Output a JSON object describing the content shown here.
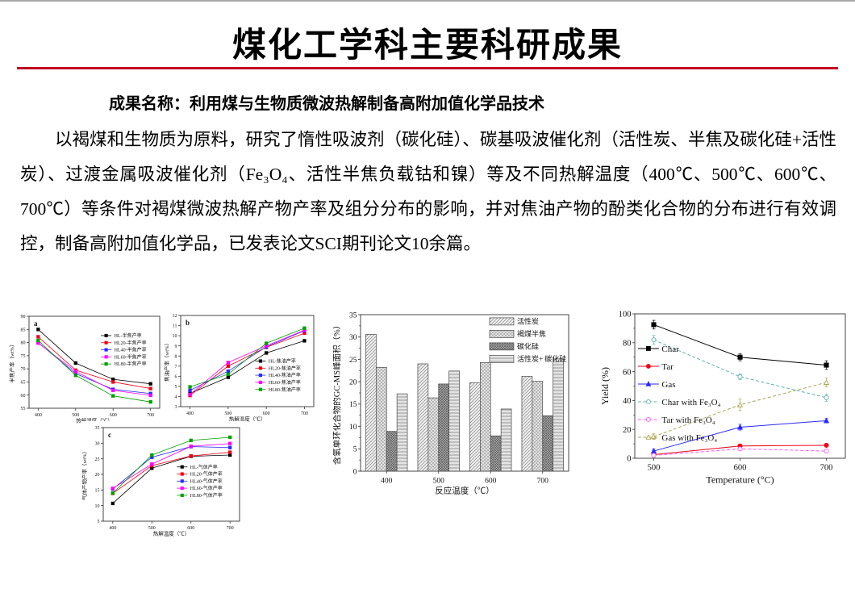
{
  "slide": {
    "title": "煤化工学科主要科研成果",
    "subtitle": "成果名称：利用煤与生物质微波热解制备高附加值化学品技术",
    "body": "以褐煤和生物质为原料，研究了惰性吸波剂（碳化硅）、碳基吸波催化剂（活性炭、半焦及碳化硅+活性炭）、过渡金属吸波催化剂（Fe₃O₄、活性半焦负载钴和镍）等及不同热解温度（400℃、500℃、600℃、700℃）等条件对褐煤微波热解产物产率及组分分布的影响，并对焦油产物的酚类化合物的分布进行有效调控，制备高附加值化学品，已发表论文SCI期刊论文10余篇。",
    "accent_color": "#c00023"
  },
  "chart_data": [
    {
      "id": "fig-a",
      "type": "line",
      "panel_label": "a",
      "x": [
        400,
        500,
        600,
        700
      ],
      "xlabel": "热解温度（℃）",
      "ylabel": "半焦产率（wt%）",
      "ylim": [
        55,
        90
      ],
      "ytick_step": 5,
      "grid": false,
      "legend_position": "inside-right",
      "legend_pos": [
        0.55,
        0.21
      ],
      "series": [
        {
          "name": "HL-半焦产率",
          "color": "#000000",
          "values": [
            85.0,
            72.2,
            66.0,
            64.3
          ]
        },
        {
          "name": "HL20-半焦产率",
          "color": "#f00014",
          "values": [
            82.2,
            69.5,
            65.0,
            62.5
          ]
        },
        {
          "name": "HL40-半焦产率",
          "color": "#2929ff",
          "values": [
            80.0,
            68.2,
            62.2,
            60.6
          ]
        },
        {
          "name": "HL60-半焦产率",
          "color": "#ff00ff",
          "values": [
            79.8,
            69.0,
            61.8,
            59.9
          ]
        },
        {
          "name": "HL80-半焦产率",
          "color": "#00a000",
          "values": [
            80.8,
            67.5,
            59.7,
            57.4
          ]
        }
      ]
    },
    {
      "id": "fig-b",
      "type": "line",
      "panel_label": "b",
      "x": [
        400,
        500,
        600,
        700
      ],
      "xlabel": "热解温度（℃）",
      "ylabel": "焦油产率（wt%）",
      "ylim": [
        3,
        12
      ],
      "ytick_step": 1,
      "grid": false,
      "legend_position": "inside-right-middle",
      "legend_pos": [
        0.56,
        0.5
      ],
      "series": [
        {
          "name": "HL-焦油产率",
          "color": "#000000",
          "values": [
            4.3,
            5.9,
            8.3,
            9.5
          ]
        },
        {
          "name": "HL20-焦油产率",
          "color": "#f00014",
          "values": [
            4.1,
            7.0,
            8.85,
            10.25
          ]
        },
        {
          "name": "HL40-焦油产率",
          "color": "#2929ff",
          "values": [
            4.6,
            6.5,
            8.9,
            10.5
          ]
        },
        {
          "name": "HL60-焦油产率",
          "color": "#ff00ff",
          "values": [
            4.2,
            7.35,
            9.0,
            10.55
          ]
        },
        {
          "name": "HL80-焦油产率",
          "color": "#00a000",
          "values": [
            4.95,
            6.2,
            9.25,
            10.75
          ]
        }
      ]
    },
    {
      "id": "fig-c",
      "type": "line",
      "panel_label": "c",
      "x": [
        400,
        500,
        600,
        700
      ],
      "xlabel": "热解温度（℃）",
      "ylabel": "气体产物产率（wt%）",
      "ylim": [
        5,
        35
      ],
      "ytick_step": 5,
      "grid": false,
      "legend_position": "inside-right-middle",
      "legend_pos": [
        0.54,
        0.42
      ],
      "series": [
        {
          "name": "HL-气体产率",
          "color": "#000000",
          "values": [
            10.7,
            22.0,
            25.8,
            26.2
          ]
        },
        {
          "name": "HL20-气体产率",
          "color": "#f00014",
          "values": [
            13.9,
            22.8,
            25.9,
            27.1
          ]
        },
        {
          "name": "HL40-气体产率",
          "color": "#2929ff",
          "values": [
            15.3,
            25.5,
            28.9,
            28.6
          ]
        },
        {
          "name": "HL60-气体产率",
          "color": "#ff00ff",
          "values": [
            15.5,
            23.3,
            29.0,
            29.9
          ]
        },
        {
          "name": "HL80-气体产率",
          "color": "#00a000",
          "values": [
            14.0,
            26.2,
            30.9,
            31.9
          ]
        }
      ]
    },
    {
      "id": "fig-bar",
      "type": "bar",
      "categories": [
        400,
        500,
        600,
        700
      ],
      "xlabel": "反应温度（℃）",
      "ylabel": "含氧单环化合物的GC-MS峰面积（%）",
      "ylim": [
        0,
        35
      ],
      "ytick_step": 5,
      "ytick_minor": 2.5,
      "grid": false,
      "legend_position": "inside-top-right",
      "legend_pos": [
        0.62,
        0.02
      ],
      "series": [
        {
          "name": "活性炭",
          "pattern": "diag",
          "values": [
            30.6,
            24.0,
            19.8,
            21.2
          ]
        },
        {
          "name": "褐煤半焦",
          "pattern": "cross",
          "values": [
            23.2,
            16.4,
            24.3,
            20.1
          ]
        },
        {
          "name": "碳化硅",
          "pattern": "dense",
          "values": [
            8.9,
            19.5,
            7.9,
            12.4
          ]
        },
        {
          "name": "活性炭+ 碳化硅",
          "pattern": "horiz",
          "values": [
            17.3,
            22.4,
            13.9,
            25.1
          ]
        }
      ]
    },
    {
      "id": "fig-right",
      "type": "line",
      "x": [
        500,
        600,
        700
      ],
      "xlabel": "Temperature (°C)",
      "ylabel": "Yield (%)",
      "ylim": [
        0,
        100
      ],
      "ytick_step": 20,
      "ytick_minor": 10,
      "grid": false,
      "legend_position": "inside-left-middle",
      "legend_pos": [
        0.015,
        0.24
      ],
      "series": [
        {
          "name": "Char",
          "color": "#000000",
          "marker": "square",
          "values": [
            92.5,
            70.0,
            64.5
          ],
          "err": [
            3,
            2.5,
            3
          ]
        },
        {
          "name": "Tar",
          "color": "#f00014",
          "marker": "circle",
          "values": [
            2.5,
            8.5,
            9.0
          ],
          "err": [
            1,
            1.2,
            1
          ]
        },
        {
          "name": "Gas",
          "color": "#2929ff",
          "marker": "triangle",
          "values": [
            5.0,
            21.5,
            26.0
          ],
          "err": [
            1.5,
            2,
            1.5
          ]
        },
        {
          "name": "Char with Fe₃O₄",
          "color": "#5fb0ae",
          "marker": "circle-open",
          "dash": true,
          "values": [
            82.0,
            56.5,
            42.0
          ],
          "err": [
            3,
            2,
            2.5
          ]
        },
        {
          "name": "Tar with Fe₃O₄",
          "color": "#ff55ff",
          "marker": "circle-open",
          "dash": true,
          "values": [
            2.0,
            6.5,
            5.0
          ],
          "err": [
            0.8,
            1,
            0.8
          ]
        },
        {
          "name": "Gas with Fe₃O₄",
          "color": "#aaa652",
          "marker": "triangle-open",
          "dash": true,
          "values": [
            15.0,
            37.0,
            52.5
          ],
          "err": [
            2,
            4,
            3
          ]
        }
      ]
    }
  ]
}
